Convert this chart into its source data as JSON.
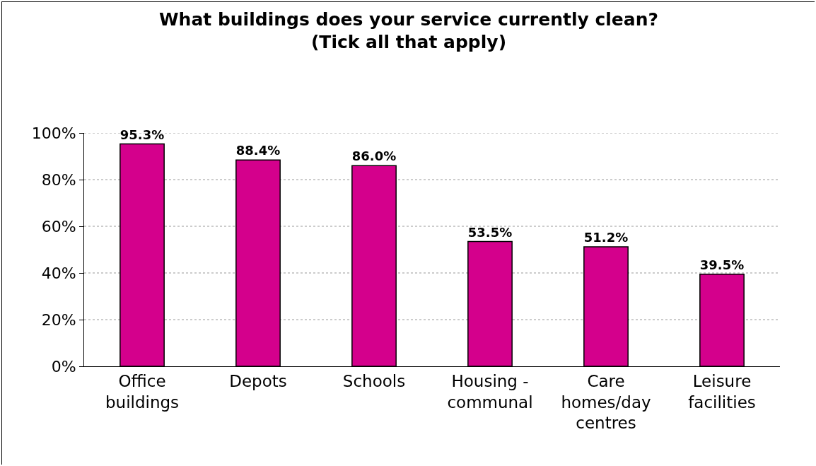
{
  "chart_data": {
    "type": "bar",
    "title": "What buildings does your service currently clean? (Tick all that apply)",
    "categories": [
      "Office buildings",
      "Depots",
      "Schools",
      "Housing - communal",
      "Care homes/day centres",
      "Leisure facilities"
    ],
    "values": [
      95.3,
      88.4,
      86.0,
      53.5,
      51.2,
      39.5
    ],
    "value_labels": [
      "95.3%",
      "88.4%",
      "86.0%",
      "53.5%",
      "51.2%",
      "39.5%"
    ],
    "color": "#d4008c",
    "ylim": [
      0,
      100
    ],
    "yticks": [
      {
        "value": 0,
        "label": "0%"
      },
      {
        "value": 20,
        "label": "20%"
      },
      {
        "value": 40,
        "label": "40%"
      },
      {
        "value": 60,
        "label": "60%"
      },
      {
        "value": 80,
        "label": "80%"
      },
      {
        "value": 100,
        "label": "100%"
      }
    ],
    "grid": "y"
  }
}
